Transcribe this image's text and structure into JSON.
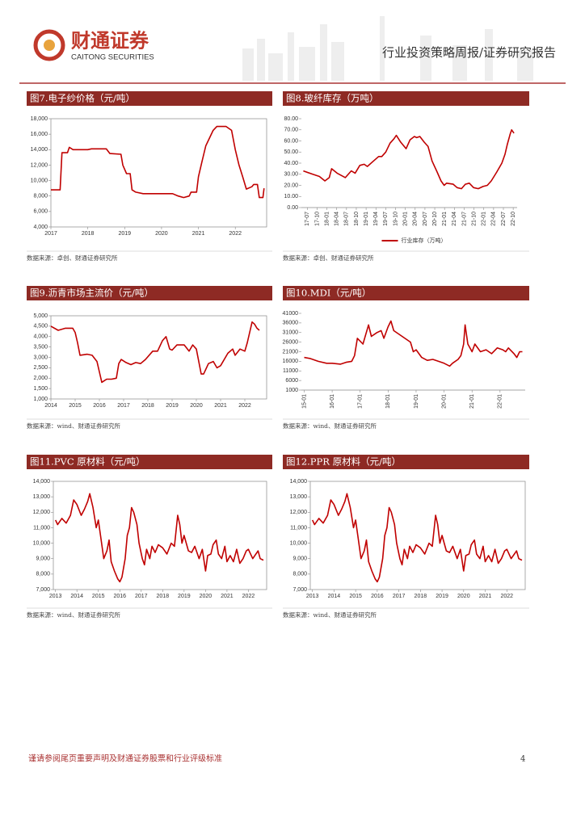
{
  "header": {
    "logo_cn": "财通证券",
    "logo_en": "CAITONG SECURITIES",
    "report_type": "行业投资策略周报/证券研究报告"
  },
  "footer": {
    "disclaimer": "谨请参阅尾页重要声明及财通证券股票和行业评级标准",
    "page": "4"
  },
  "chart_data": [
    {
      "type": "line",
      "title": "图7.电子纱价格（元/吨）",
      "source": "数据来源：卓创、财通证券研究所",
      "x": [
        2017,
        2017.25,
        2017.3,
        2017.45,
        2017.5,
        2017.6,
        2018,
        2018.1,
        2018.5,
        2018.6,
        2018.9,
        2018.95,
        2019.05,
        2019.15,
        2019.2,
        2019.3,
        2019.5,
        2020,
        2020.3,
        2020.45,
        2020.6,
        2020.75,
        2020.8,
        2020.95,
        2021,
        2021.1,
        2021.2,
        2021.3,
        2021.4,
        2021.5,
        2021.75,
        2021.9,
        2022,
        2022.1,
        2022.2,
        2022.3,
        2022.45,
        2022.5,
        2022.6,
        2022.65,
        2022.75,
        2022.78
      ],
      "series": [
        {
          "color": "#c00000",
          "values": [
            8800,
            8800,
            13600,
            13600,
            14300,
            14000,
            14000,
            14100,
            14100,
            13500,
            13400,
            12000,
            10900,
            10900,
            8800,
            8500,
            8300,
            8300,
            8300,
            8000,
            7800,
            8000,
            8500,
            8500,
            10500,
            12500,
            14500,
            15500,
            16500,
            17000,
            17000,
            16500,
            14000,
            12000,
            10500,
            8900,
            9200,
            9500,
            9500,
            7800,
            7800,
            9000
          ]
        }
      ],
      "xlim": [
        2017,
        2022.85
      ],
      "xticks": [
        2017,
        2018,
        2019,
        2020,
        2021,
        2022
      ],
      "ylim": [
        4000,
        18000
      ],
      "yticks": [
        {
          "value": 4000,
          "label": "4,000"
        },
        {
          "value": 6000,
          "label": "6,000"
        },
        {
          "value": 8000,
          "label": "8,000"
        },
        {
          "value": 10000,
          "label": "10,000"
        },
        {
          "value": 12000,
          "label": "12,000"
        },
        {
          "value": 14000,
          "label": "14,000"
        },
        {
          "value": 16000,
          "label": "16,000"
        },
        {
          "value": 18000,
          "label": "18,000"
        }
      ]
    },
    {
      "type": "line",
      "title": "图8.玻纤库存（万吨）",
      "source": "数据来源：卓创、财通证券研究所",
      "x": [
        2017.4,
        2017.64,
        2017.81,
        2017.95,
        2018.06,
        2018.12,
        2018.26,
        2018.47,
        2018.62,
        2018.72,
        2018.84,
        2018.95,
        2019.03,
        2019.19,
        2019.32,
        2019.4,
        2019.5,
        2019.61,
        2019.71,
        2019.77,
        2019.88,
        2020.02,
        2020.12,
        2020.23,
        2020.29,
        2020.37,
        2020.48,
        2020.58,
        2020.68,
        2020.81,
        2020.91,
        2020.99,
        2021.05,
        2021.22,
        2021.32,
        2021.43,
        2021.53,
        2021.63,
        2021.74,
        2021.86,
        2021.98,
        2022.09,
        2022.19,
        2022.33,
        2022.46,
        2022.54,
        2022.6,
        2022.67,
        2022.71,
        2022.77
      ],
      "series": [
        {
          "name": "行业库存（万吨）",
          "color": "#c00000",
          "values": [
            33,
            30,
            28,
            24,
            27,
            35,
            31,
            27,
            33,
            31,
            38,
            39,
            37,
            42,
            46,
            46,
            50,
            58,
            62,
            65,
            59,
            53,
            61,
            64,
            63,
            64,
            59,
            55,
            42,
            32,
            24,
            20,
            22,
            21,
            18,
            17,
            21,
            22,
            18,
            17,
            19,
            20,
            24,
            32,
            40,
            48,
            57,
            66,
            70,
            67
          ]
        }
      ],
      "legend": "bottom",
      "xlim": [
        2017.35,
        2022.85
      ],
      "xticks": [
        {
          "value": 2017.5,
          "label": "17-07"
        },
        {
          "value": 2017.75,
          "label": "17-10"
        },
        {
          "value": 2018,
          "label": "18-01"
        },
        {
          "value": 2018.25,
          "label": "18-04"
        },
        {
          "value": 2018.5,
          "label": "18-07"
        },
        {
          "value": 2018.75,
          "label": "18-10"
        },
        {
          "value": 2019,
          "label": "19-01"
        },
        {
          "value": 2019.25,
          "label": "19-04"
        },
        {
          "value": 2019.5,
          "label": "19-07"
        },
        {
          "value": 2019.75,
          "label": "19-10"
        },
        {
          "value": 2020,
          "label": "20-01"
        },
        {
          "value": 2020.25,
          "label": "20-04"
        },
        {
          "value": 2020.5,
          "label": "20-07"
        },
        {
          "value": 2020.75,
          "label": "20-10"
        },
        {
          "value": 2021,
          "label": "21-01"
        },
        {
          "value": 2021.25,
          "label": "21-04"
        },
        {
          "value": 2021.5,
          "label": "21-07"
        },
        {
          "value": 2021.75,
          "label": "21-10"
        },
        {
          "value": 2022,
          "label": "22-01"
        },
        {
          "value": 2022.25,
          "label": "22-04"
        },
        {
          "value": 2022.5,
          "label": "22-07"
        },
        {
          "value": 2022.75,
          "label": "22-10"
        }
      ],
      "ylim": [
        0,
        80
      ],
      "yticks": [
        {
          "value": 0,
          "label": "0.00"
        },
        {
          "value": 10,
          "label": "10.00"
        },
        {
          "value": 20,
          "label": "20.00"
        },
        {
          "value": 30,
          "label": "30.00"
        },
        {
          "value": 40,
          "label": "40.00"
        },
        {
          "value": 50,
          "label": "50.00"
        },
        {
          "value": 60,
          "label": "60.00"
        },
        {
          "value": 70,
          "label": "70.00"
        },
        {
          "value": 80,
          "label": "80.00"
        }
      ]
    },
    {
      "type": "line",
      "title": "图9.沥青市场主流价（元/吨）",
      "source": "数据来源：wind、财通证券研究所",
      "x": [
        2014,
        2014.3,
        2014.6,
        2014.9,
        2015,
        2015.1,
        2015.2,
        2015.5,
        2015.7,
        2015.9,
        2016,
        2016.1,
        2016.3,
        2016.5,
        2016.7,
        2016.8,
        2016.9,
        2017.1,
        2017.3,
        2017.5,
        2017.7,
        2017.9,
        2018.2,
        2018.4,
        2018.6,
        2018.75,
        2018.9,
        2019,
        2019.2,
        2019.5,
        2019.7,
        2019.85,
        2020,
        2020.2,
        2020.3,
        2020.5,
        2020.7,
        2020.85,
        2021,
        2021.3,
        2021.5,
        2021.6,
        2021.8,
        2022,
        2022.1,
        2022.3,
        2022.4,
        2022.5,
        2022.6
      ],
      "series": [
        {
          "color": "#c00000",
          "values": [
            4500,
            4300,
            4400,
            4400,
            4200,
            3700,
            3100,
            3150,
            3100,
            2800,
            2300,
            1800,
            1950,
            1950,
            2000,
            2700,
            2900,
            2750,
            2650,
            2750,
            2700,
            2900,
            3300,
            3300,
            3800,
            4000,
            3400,
            3350,
            3600,
            3600,
            3300,
            3600,
            3400,
            2200,
            2200,
            2700,
            2800,
            2500,
            2600,
            3200,
            3400,
            3100,
            3400,
            3300,
            3700,
            4700,
            4600,
            4400,
            4300
          ]
        }
      ],
      "xlim": [
        2014,
        2022.9
      ],
      "xticks": [
        2014,
        2015,
        2016,
        2017,
        2018,
        2019,
        2020,
        2021,
        2022
      ],
      "ylim": [
        1000,
        5000
      ],
      "yticks": [
        {
          "value": 1000,
          "label": "1,000"
        },
        {
          "value": 1500,
          "label": "1,500"
        },
        {
          "value": 2000,
          "label": "2,000"
        },
        {
          "value": 2500,
          "label": "2,500"
        },
        {
          "value": 3000,
          "label": "3,000"
        },
        {
          "value": 3500,
          "label": "3,500"
        },
        {
          "value": 4000,
          "label": "4,000"
        },
        {
          "value": 4500,
          "label": "4,500"
        },
        {
          "value": 5000,
          "label": "5,000"
        }
      ]
    },
    {
      "type": "line",
      "title": "图10.MDI（元/吨）",
      "source": "数据来源：wind、财通证券研究所",
      "x": [
        2015,
        2015.2,
        2015.5,
        2015.8,
        2016,
        2016.3,
        2016.5,
        2016.7,
        2016.8,
        2016.9,
        2017.1,
        2017.3,
        2017.4,
        2017.6,
        2017.75,
        2017.85,
        2018,
        2018.1,
        2018.2,
        2018.4,
        2018.6,
        2018.8,
        2018.9,
        2019,
        2019.2,
        2019.4,
        2019.6,
        2019.8,
        2020,
        2020.2,
        2020.3,
        2020.5,
        2020.6,
        2020.7,
        2020.75,
        2020.85,
        2021,
        2021.1,
        2021.3,
        2021.5,
        2021.7,
        2021.9,
        2022.1,
        2022.2,
        2022.3,
        2022.5,
        2022.6,
        2022.7,
        2022.8
      ],
      "series": [
        {
          "color": "#c00000",
          "values": [
            18000,
            17500,
            16000,
            15000,
            15000,
            14500,
            15500,
            16000,
            19000,
            28000,
            25000,
            35000,
            29000,
            31000,
            32000,
            28000,
            34000,
            37000,
            32000,
            30000,
            28000,
            26000,
            21000,
            22000,
            18000,
            16500,
            17000,
            16000,
            15000,
            13500,
            15000,
            17000,
            19000,
            25000,
            35000,
            25000,
            21000,
            25000,
            21000,
            22000,
            20000,
            23000,
            22000,
            21000,
            23000,
            20000,
            18000,
            21000,
            21000
          ]
        }
      ],
      "xlim": [
        2014.9,
        2022.9
      ],
      "xticks": [
        {
          "value": 2015,
          "label": "15-01"
        },
        {
          "value": 2016,
          "label": "16-01"
        },
        {
          "value": 2017,
          "label": "17-01"
        },
        {
          "value": 2018,
          "label": "18-01"
        },
        {
          "value": 2019,
          "label": "19-01"
        },
        {
          "value": 2020,
          "label": "20-01"
        },
        {
          "value": 2021,
          "label": "21-01"
        },
        {
          "value": 2022,
          "label": "22-01"
        }
      ],
      "ylim": [
        1000,
        41000
      ],
      "yticks": [
        1000,
        6000,
        11000,
        16000,
        21000,
        26000,
        31000,
        36000,
        41000
      ]
    },
    {
      "type": "line",
      "title": "图11.PVC 原材料（元/吨）",
      "source": "数据来源：wind、财通证券研究所",
      "x": [
        2013,
        2013.1,
        2013.3,
        2013.5,
        2013.7,
        2013.85,
        2014,
        2014.2,
        2014.35,
        2014.5,
        2014.6,
        2014.75,
        2014.9,
        2015,
        2015.1,
        2015.25,
        2015.4,
        2015.5,
        2015.6,
        2015.75,
        2015.9,
        2016,
        2016.1,
        2016.25,
        2016.35,
        2016.45,
        2016.55,
        2016.65,
        2016.8,
        2016.9,
        2017.05,
        2017.15,
        2017.25,
        2017.4,
        2017.5,
        2017.65,
        2017.8,
        2018,
        2018.2,
        2018.4,
        2018.55,
        2018.7,
        2018.8,
        2018.9,
        2019,
        2019.2,
        2019.35,
        2019.5,
        2019.7,
        2019.85,
        2020,
        2020.1,
        2020.25,
        2020.35,
        2020.5,
        2020.6,
        2020.75,
        2020.9,
        2021,
        2021.15,
        2021.3,
        2021.45,
        2021.6,
        2021.75,
        2021.9,
        2022,
        2022.2,
        2022.35,
        2022.45,
        2022.55,
        2022.7
      ],
      "series": [
        {
          "color": "#c00000",
          "values": [
            11500,
            11200,
            11600,
            11300,
            11800,
            12800,
            12500,
            11800,
            12200,
            12700,
            13200,
            12300,
            11000,
            11500,
            10500,
            9000,
            9500,
            10200,
            8800,
            8200,
            7700,
            7500,
            7800,
            9000,
            10500,
            11000,
            12300,
            12000,
            11200,
            10000,
            9000,
            8600,
            9600,
            9000,
            9800,
            9400,
            9900,
            9700,
            9300,
            10000,
            9800,
            11800,
            11200,
            10000,
            10500,
            9500,
            9400,
            9800,
            9000,
            9600,
            8200,
            9200,
            9300,
            9900,
            10200,
            9300,
            9000,
            9800,
            8800,
            9200,
            8800,
            9600,
            8700,
            9000,
            9500,
            9600,
            9000,
            9300,
            9500,
            9000,
            8900
          ]
        }
      ],
      "xlim": [
        2012.9,
        2022.85
      ],
      "xticks": [
        2013,
        2014,
        2015,
        2016,
        2017,
        2018,
        2019,
        2020,
        2021,
        2022
      ],
      "ylim": [
        7000,
        14000
      ],
      "yticks": [
        {
          "value": 7000,
          "label": "7,000"
        },
        {
          "value": 8000,
          "label": "8,000"
        },
        {
          "value": 9000,
          "label": "9,000"
        },
        {
          "value": 10000,
          "label": "10,000"
        },
        {
          "value": 11000,
          "label": "11,000"
        },
        {
          "value": 12000,
          "label": "12,000"
        },
        {
          "value": 13000,
          "label": "13,000"
        },
        {
          "value": 14000,
          "label": "14,000"
        }
      ]
    },
    {
      "type": "line",
      "title": "图12.PPR 原材料（元/吨）",
      "source": "数据来源：wind、财通证券研究所",
      "x": [
        2013,
        2013.1,
        2013.3,
        2013.5,
        2013.7,
        2013.85,
        2014,
        2014.2,
        2014.35,
        2014.5,
        2014.6,
        2014.75,
        2014.9,
        2015,
        2015.1,
        2015.25,
        2015.4,
        2015.5,
        2015.6,
        2015.75,
        2015.9,
        2016,
        2016.1,
        2016.25,
        2016.35,
        2016.45,
        2016.55,
        2016.65,
        2016.8,
        2016.9,
        2017.05,
        2017.15,
        2017.25,
        2017.4,
        2017.5,
        2017.65,
        2017.8,
        2018,
        2018.2,
        2018.4,
        2018.55,
        2018.7,
        2018.8,
        2018.9,
        2019,
        2019.2,
        2019.35,
        2019.5,
        2019.7,
        2019.85,
        2020,
        2020.1,
        2020.25,
        2020.35,
        2020.5,
        2020.6,
        2020.75,
        2020.9,
        2021,
        2021.15,
        2021.3,
        2021.45,
        2021.6,
        2021.75,
        2021.9,
        2022,
        2022.2,
        2022.35,
        2022.45,
        2022.55,
        2022.7
      ],
      "series": [
        {
          "color": "#c00000",
          "values": [
            11500,
            11200,
            11600,
            11300,
            11800,
            12800,
            12500,
            11800,
            12200,
            12700,
            13200,
            12300,
            11000,
            11500,
            10500,
            9000,
            9500,
            10200,
            8800,
            8200,
            7700,
            7500,
            7800,
            9000,
            10500,
            11000,
            12300,
            12000,
            11200,
            10000,
            9000,
            8600,
            9600,
            9000,
            9800,
            9400,
            9900,
            9700,
            9300,
            10000,
            9800,
            11800,
            11200,
            10000,
            10500,
            9500,
            9400,
            9800,
            9000,
            9600,
            8200,
            9200,
            9300,
            9900,
            10200,
            9300,
            9000,
            9800,
            8800,
            9200,
            8800,
            9600,
            8700,
            9000,
            9500,
            9600,
            9000,
            9300,
            9500,
            9000,
            8900
          ]
        }
      ],
      "xlim": [
        2012.9,
        2022.85
      ],
      "xticks": [
        2013,
        2014,
        2015,
        2016,
        2017,
        2018,
        2019,
        2020,
        2021,
        2022
      ],
      "ylim": [
        7000,
        14000
      ],
      "yticks": [
        {
          "value": 7000,
          "label": "7,000"
        },
        {
          "value": 8000,
          "label": "8,000"
        },
        {
          "value": 9000,
          "label": "9,000"
        },
        {
          "value": 10000,
          "label": "10,000"
        },
        {
          "value": 11000,
          "label": "11,000"
        },
        {
          "value": 12000,
          "label": "12,000"
        },
        {
          "value": 13000,
          "label": "13,000"
        },
        {
          "value": 14000,
          "label": "14,000"
        }
      ]
    }
  ]
}
